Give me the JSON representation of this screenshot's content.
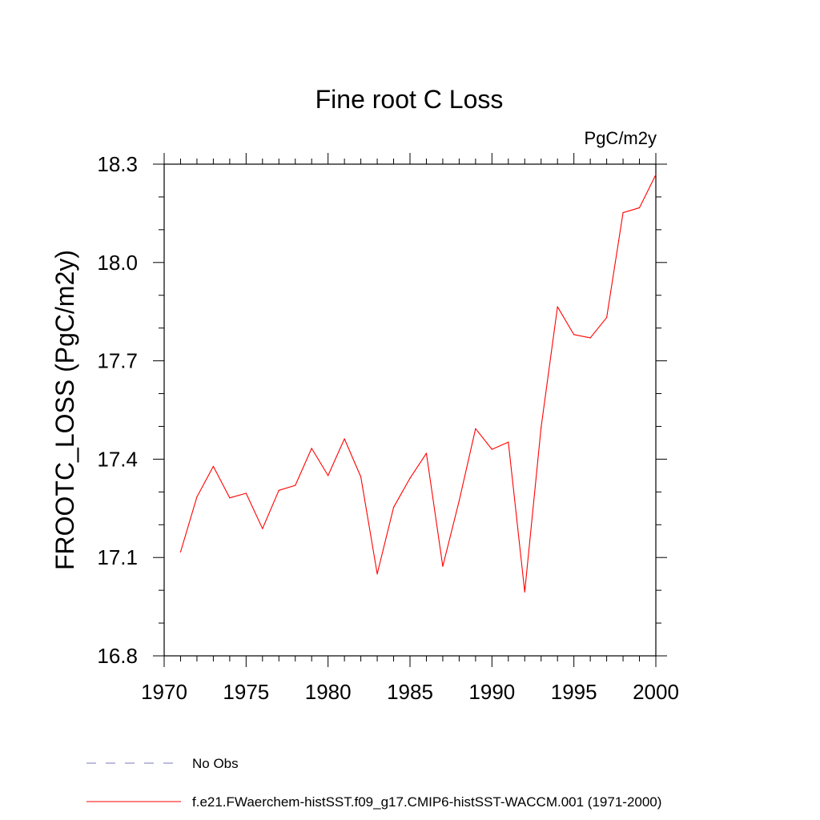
{
  "chart_data": {
    "type": "line",
    "title": "Fine root C Loss",
    "units": "PgC/m2y",
    "ylabel": "FROOTC_LOSS  (PgC/m2y)",
    "xlabel": "",
    "xlim": [
      1970,
      2000
    ],
    "ylim": [
      16.8,
      18.3
    ],
    "xticks": [
      1970,
      1975,
      1980,
      1985,
      1990,
      1995,
      2000
    ],
    "xtick_labels": [
      "1970",
      "1975",
      "1980",
      "1985",
      "1990",
      "1995",
      "2000"
    ],
    "yticks": [
      16.8,
      17.1,
      17.4,
      17.7,
      18.0,
      18.3
    ],
    "ytick_labels": [
      "16.8",
      "17.1",
      "17.4",
      "17.7",
      "18.0",
      "18.3"
    ],
    "x_minor_step": 1,
    "y_minor_step": 0.1,
    "grid": false,
    "legend_position": "bottom-left",
    "series": [
      {
        "name": "f.e21.FWaerchem-histSST.f09_g17.CMIP6-histSST-WACCM.001 (1971-2000)",
        "color": "#ff0000",
        "dash": "solid",
        "x": [
          1971,
          1972,
          1973,
          1974,
          1975,
          1976,
          1977,
          1978,
          1979,
          1980,
          1981,
          1982,
          1983,
          1984,
          1985,
          1986,
          1987,
          1988,
          1989,
          1990,
          1991,
          1992,
          1993,
          1994,
          1995,
          1996,
          1997,
          1998,
          1999,
          2000
        ],
        "values": [
          17.117,
          17.285,
          17.378,
          17.282,
          17.296,
          17.188,
          17.305,
          17.32,
          17.433,
          17.35,
          17.462,
          17.346,
          17.05,
          17.253,
          17.342,
          17.418,
          17.073,
          17.273,
          17.493,
          17.43,
          17.452,
          16.995,
          17.497,
          17.865,
          17.78,
          17.77,
          17.832,
          18.152,
          18.167,
          18.268
        ]
      },
      {
        "name": "No Obs",
        "color": "#7777bb",
        "dash": "dashed",
        "x": [],
        "values": []
      }
    ]
  }
}
